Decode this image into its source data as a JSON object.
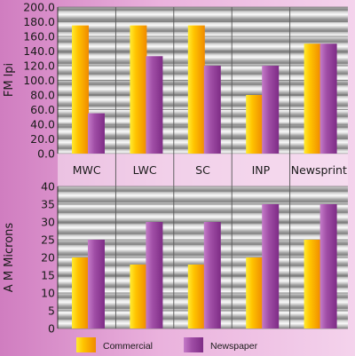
{
  "chart_data": [
    {
      "type": "bar",
      "categories": [
        "MWC",
        "LWC",
        "SC",
        "INP",
        "Newsprint"
      ],
      "series": [
        {
          "name": "Commercial",
          "values": [
            175,
            175,
            175,
            80,
            150
          ]
        },
        {
          "name": "Newspaper",
          "values": [
            55,
            133,
            120,
            120,
            150
          ]
        }
      ],
      "ylabel": "FM lpi",
      "ylim": [
        0,
        200
      ],
      "yticks": [
        "0.0",
        "20.0",
        "40.0",
        "60.0",
        "80.0",
        "100.0",
        "120.0",
        "140.0",
        "160.0",
        "180.0",
        "200.0"
      ],
      "grid": true
    },
    {
      "type": "bar",
      "categories": [
        "MWC",
        "LWC",
        "SC",
        "INP",
        "Newsprint"
      ],
      "series": [
        {
          "name": "Commercial",
          "values": [
            20,
            18,
            18,
            20,
            25
          ]
        },
        {
          "name": "Newspaper",
          "values": [
            25,
            30,
            30,
            35,
            35
          ]
        }
      ],
      "ylabel": "A M Microns",
      "ylim": [
        0,
        40
      ],
      "yticks": [
        "0",
        "5",
        "10",
        "15",
        "20",
        "25",
        "30",
        "35",
        "40"
      ],
      "grid": true
    }
  ],
  "legend": {
    "placement": "bottom",
    "items": [
      {
        "label": "Commercial",
        "color": "#f7a000"
      },
      {
        "label": "Newspaper",
        "color": "#9a3f9e"
      }
    ]
  }
}
